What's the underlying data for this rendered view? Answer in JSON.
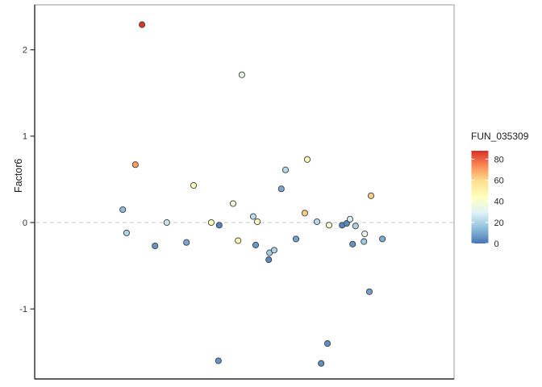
{
  "figure": {
    "background": "#ffffff"
  },
  "chart_data": {
    "type": "scatter",
    "title": "",
    "xlabel": "",
    "ylabel": "Factor6",
    "ylim": [
      -1.81,
      2.52
    ],
    "y_ticks": [
      2,
      1,
      0,
      -1
    ],
    "grid": false,
    "zero_line": {
      "y": 0,
      "style": "dashed",
      "color": "#cbcbcb"
    },
    "panel": {
      "border_color": "#a9a9a9",
      "axis_line_color": "#2f2f2f"
    },
    "point_style": {
      "radius": 3.6,
      "stroke": "#3d3d3d",
      "stroke_width": 0.9
    },
    "legend": {
      "title": "FUN_035309",
      "position": "right",
      "kind": "colorbar",
      "domain": [
        0,
        88
      ],
      "ticks": [
        80,
        60,
        40,
        20,
        0
      ],
      "palette_low_to_high": [
        "#4575b4",
        "#91bfdb",
        "#e0f3f8",
        "#ffffbf",
        "#fee090",
        "#fc8d59",
        "#d73027"
      ]
    },
    "points": [
      {
        "x": 0.256,
        "factor6": 2.29,
        "fun_035309": 87
      },
      {
        "x": 0.494,
        "factor6": 1.71,
        "fun_035309": 33
      },
      {
        "x": 0.24,
        "factor6": 0.67,
        "fun_035309": 70
      },
      {
        "x": 0.379,
        "factor6": 0.43,
        "fun_035309": 46
      },
      {
        "x": 0.65,
        "factor6": 0.73,
        "fun_035309": 45
      },
      {
        "x": 0.598,
        "factor6": 0.61,
        "fun_035309": 22
      },
      {
        "x": 0.588,
        "factor6": 0.39,
        "fun_035309": 10
      },
      {
        "x": 0.21,
        "factor6": 0.15,
        "fun_035309": 14
      },
      {
        "x": 0.219,
        "factor6": -0.12,
        "fun_035309": 20
      },
      {
        "x": 0.287,
        "factor6": -0.27,
        "fun_035309": 6
      },
      {
        "x": 0.315,
        "factor6": 0.0,
        "fun_035309": 25
      },
      {
        "x": 0.362,
        "factor6": -0.23,
        "fun_035309": 10
      },
      {
        "x": 0.421,
        "factor6": 0.0,
        "fun_035309": 45
      },
      {
        "x": 0.44,
        "factor6": -0.03,
        "fun_035309": 3
      },
      {
        "x": 0.473,
        "factor6": 0.22,
        "fun_035309": 38
      },
      {
        "x": 0.485,
        "factor6": -0.21,
        "fun_035309": 48
      },
      {
        "x": 0.521,
        "factor6": 0.07,
        "fun_035309": 22
      },
      {
        "x": 0.531,
        "factor6": 0.01,
        "fun_035309": 43
      },
      {
        "x": 0.527,
        "factor6": -0.26,
        "fun_035309": 7
      },
      {
        "x": 0.56,
        "factor6": -0.35,
        "fun_035309": 18
      },
      {
        "x": 0.571,
        "factor6": -0.32,
        "fun_035309": 20
      },
      {
        "x": 0.558,
        "factor6": -0.43,
        "fun_035309": 4
      },
      {
        "x": 0.623,
        "factor6": -0.19,
        "fun_035309": 9
      },
      {
        "x": 0.644,
        "factor6": 0.11,
        "fun_035309": 62
      },
      {
        "x": 0.673,
        "factor6": 0.01,
        "fun_035309": 22
      },
      {
        "x": 0.702,
        "factor6": -0.03,
        "fun_035309": 40
      },
      {
        "x": 0.733,
        "factor6": -0.03,
        "fun_035309": 3
      },
      {
        "x": 0.744,
        "factor6": -0.01,
        "fun_035309": 4
      },
      {
        "x": 0.752,
        "factor6": 0.04,
        "fun_035309": 28
      },
      {
        "x": 0.765,
        "factor6": -0.04,
        "fun_035309": 20
      },
      {
        "x": 0.787,
        "factor6": -0.13,
        "fun_035309": 33
      },
      {
        "x": 0.785,
        "factor6": -0.22,
        "fun_035309": 17
      },
      {
        "x": 0.758,
        "factor6": -0.25,
        "fun_035309": 6
      },
      {
        "x": 0.829,
        "factor6": -0.19,
        "fun_035309": 11
      },
      {
        "x": 0.802,
        "factor6": 0.31,
        "fun_035309": 62
      },
      {
        "x": 0.798,
        "factor6": -0.8,
        "fun_035309": 8
      },
      {
        "x": 0.698,
        "factor6": -1.4,
        "fun_035309": 5
      },
      {
        "x": 0.438,
        "factor6": -1.6,
        "fun_035309": 6
      },
      {
        "x": 0.683,
        "factor6": -1.63,
        "fun_035309": 5
      }
    ]
  }
}
